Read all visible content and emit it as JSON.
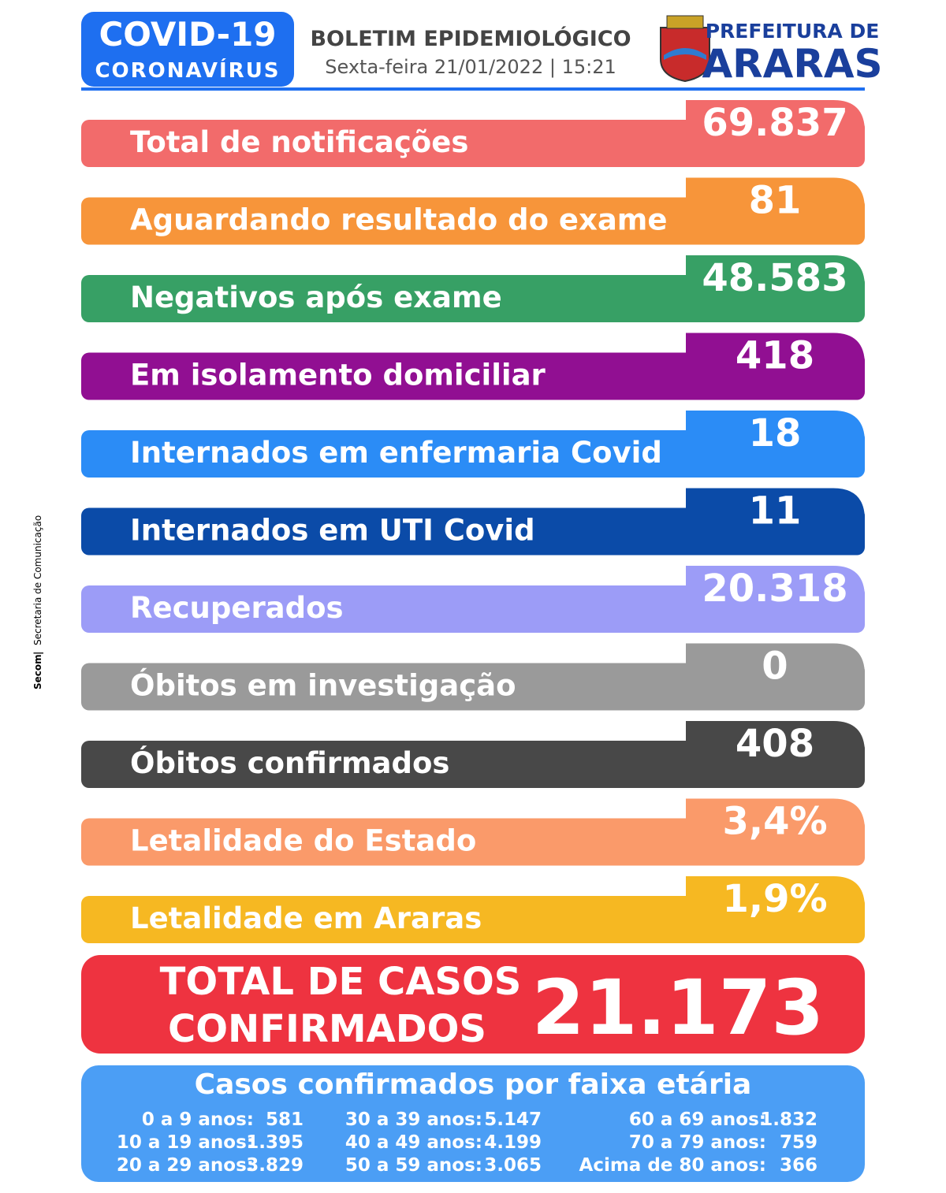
{
  "header": {
    "badge_title": "COVID-19",
    "badge_subtitle": "CORONAVÍRUS",
    "title": "BOLETIM EPIDEMIOLÓGICO",
    "date": "Sexta-feira 21/01/2022 | 15:21",
    "org_line1": "PREFEITURA DE",
    "org_line2": "ARARAS"
  },
  "side_note": {
    "org": "Secom",
    "sep": "|",
    "department": "Secretaria de Comunicação"
  },
  "rows": [
    {
      "label": "Total de notificações",
      "value": "69.837",
      "color": "#f26b6b"
    },
    {
      "label": "Aguardando resultado do exame",
      "value": "81",
      "color": "#f7953a"
    },
    {
      "label": "Negativos após exame",
      "value": "48.583",
      "color": "#37a065"
    },
    {
      "label": "Em isolamento domiciliar",
      "value": "418",
      "color": "#910f92"
    },
    {
      "label": "Internados em enfermaria Covid",
      "value": "18",
      "color": "#2b8cf6"
    },
    {
      "label": "Internados em UTI Covid",
      "value": "11",
      "color": "#0b4ba8"
    },
    {
      "label": "Recuperados",
      "value": "20.318",
      "color": "#9c9cf7"
    },
    {
      "label": "Óbitos em investigação",
      "value": "0",
      "color": "#9a9a9a"
    },
    {
      "label": "Óbitos confirmados",
      "value": "408",
      "color": "#484848"
    },
    {
      "label": "Letalidade do Estado",
      "value": "3,4%",
      "color": "#fa9a6a"
    },
    {
      "label": "Letalidade em Araras",
      "value": "1,9%",
      "color": "#f6b822"
    }
  ],
  "total": {
    "label_line1": "TOTAL DE CASOS",
    "label_line2": "CONFIRMADOS",
    "value": "21.173",
    "color": "#ee3340"
  },
  "age_groups": {
    "title": "Casos confirmados por faixa etária",
    "color": "#4b9ef5",
    "items": [
      {
        "label": "0 a 9 anos:",
        "value": "581"
      },
      {
        "label": "10 a 19 anos:",
        "value": "1.395"
      },
      {
        "label": "20 a 29 anos:",
        "value": "3.829"
      },
      {
        "label": "30 a 39 anos:",
        "value": "5.147"
      },
      {
        "label": "40 a 49 anos:",
        "value": "4.199"
      },
      {
        "label": "50 a 59 anos:",
        "value": "3.065"
      },
      {
        "label": "60 a 69 anos:",
        "value": "1.832"
      },
      {
        "label": "70 a 79 anos:",
        "value": "759"
      },
      {
        "label": "Acima de 80 anos:",
        "value": "366"
      }
    ]
  }
}
